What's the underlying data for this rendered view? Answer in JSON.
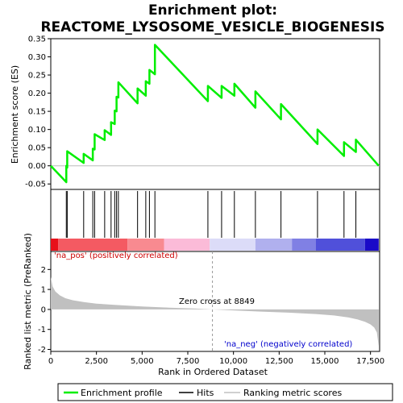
{
  "chart_data": {
    "type": "line",
    "title": "Enrichment plot:",
    "subtitle": "REACTOME_LYSOSOME_VESICLE_BIOGENESIS",
    "es_ylabel": "Enrichment score (ES)",
    "metric_ylabel": "Ranked list metric (PreRanked)",
    "xlabel": "Rank in Ordered Dataset",
    "xlim": [
      0,
      18000
    ],
    "es_ylim": [
      -0.065,
      0.35
    ],
    "metric_ylim": [
      -2.1,
      2.9
    ],
    "x_ticks": [
      0,
      2500,
      5000,
      7500,
      10000,
      12500,
      15000,
      17500
    ],
    "x_tick_labels": [
      "0",
      "2,500",
      "5,000",
      "7,500",
      "10,000",
      "12,500",
      "15,000",
      "17,500"
    ],
    "es_y_ticks": [
      -0.05,
      0.0,
      0.05,
      0.1,
      0.15,
      0.2,
      0.25,
      0.3,
      0.35
    ],
    "es_y_tick_labels": [
      "-0.05",
      "0.00",
      "0.05",
      "0.10",
      "0.15",
      "0.20",
      "0.25",
      "0.30",
      "0.35"
    ],
    "metric_y_ticks": [
      -2,
      -1,
      0,
      1,
      2
    ],
    "metric_y_tick_labels": [
      "-2",
      "-1",
      "0",
      "1",
      "2"
    ],
    "hits": [
      850,
      900,
      1800,
      2300,
      2400,
      2950,
      3300,
      3500,
      3600,
      3700,
      4750,
      5200,
      5400,
      5700,
      8600,
      9350,
      10050,
      11200,
      12600,
      14600,
      16050,
      16700
    ],
    "enrichment_profile": {
      "x": [
        0,
        850,
        850,
        900,
        900,
        1800,
        1800,
        2300,
        2300,
        2400,
        2400,
        2950,
        2950,
        3300,
        3300,
        3500,
        3500,
        3600,
        3600,
        3700,
        3700,
        4750,
        4750,
        5200,
        5200,
        5400,
        5400,
        5700,
        5700,
        8600,
        8600,
        9350,
        9350,
        10050,
        10050,
        11200,
        11200,
        12600,
        12600,
        14600,
        14600,
        16050,
        16050,
        16700,
        16700,
        17950
      ],
      "y": [
        0.0,
        -0.045,
        0.0,
        -0.005,
        0.04,
        0.008,
        0.033,
        0.015,
        0.047,
        0.045,
        0.087,
        0.071,
        0.098,
        0.085,
        0.12,
        0.115,
        0.152,
        0.15,
        0.19,
        0.188,
        0.23,
        0.172,
        0.213,
        0.193,
        0.233,
        0.226,
        0.264,
        0.252,
        0.333,
        0.178,
        0.22,
        0.187,
        0.22,
        0.193,
        0.226,
        0.16,
        0.205,
        0.128,
        0.17,
        0.06,
        0.1,
        0.027,
        0.065,
        0.038,
        0.072,
        0.0
      ]
    },
    "ranked_metric": {
      "x": [
        0,
        100,
        250,
        500,
        800,
        1200,
        1800,
        2500,
        3500,
        5000,
        6500,
        8000,
        8849,
        10000,
        11500,
        13000,
        14500,
        15500,
        16300,
        16800,
        17200,
        17500,
        17700,
        17850,
        17950
      ],
      "y": [
        1.62,
        1.15,
        0.9,
        0.7,
        0.56,
        0.46,
        0.37,
        0.29,
        0.23,
        0.15,
        0.09,
        0.04,
        0.0,
        -0.05,
        -0.11,
        -0.16,
        -0.23,
        -0.3,
        -0.4,
        -0.5,
        -0.62,
        -0.75,
        -0.9,
        -1.15,
        -1.85
      ]
    },
    "zero_cross_label": "Zero cross at 8849",
    "zero_cross": 8849,
    "pos_label": "'na_pos' (positively correlated)",
    "neg_label": "'na_neg' (negatively correlated)",
    "heat_segments": [
      {
        "from": 0,
        "to": 400,
        "color": "#e8101a"
      },
      {
        "from": 400,
        "to": 4200,
        "color": "#f45a62"
      },
      {
        "from": 4200,
        "to": 6200,
        "color": "#f88a90"
      },
      {
        "from": 6200,
        "to": 8700,
        "color": "#fbbbd8"
      },
      {
        "from": 8700,
        "to": 11200,
        "color": "#dcdcf8"
      },
      {
        "from": 11200,
        "to": 13200,
        "color": "#b0b0ee"
      },
      {
        "from": 13200,
        "to": 14500,
        "color": "#8080e4"
      },
      {
        "from": 14500,
        "to": 17200,
        "color": "#5050da"
      },
      {
        "from": 17200,
        "to": 17950,
        "color": "#1a0ac8"
      }
    ],
    "legend": [
      {
        "name": "Enrichment profile",
        "color": "#00ee00"
      },
      {
        "name": "Hits",
        "color": "#000000"
      },
      {
        "name": "Ranking metric scores",
        "color": "#c0c0c0"
      }
    ]
  }
}
